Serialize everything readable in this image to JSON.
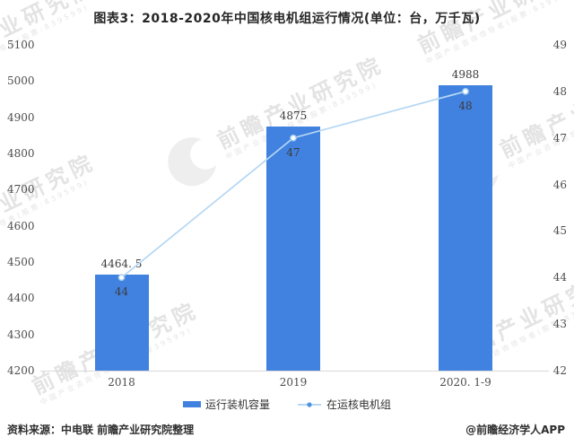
{
  "chart_data": {
    "type": "bar+line",
    "title": "图表3：2018-2020年中国核电机组运行情况(单位：台，万千瓦)",
    "categories": [
      "2018",
      "2019",
      "2020.1-9"
    ],
    "category_display": [
      "2018",
      "2019",
      "2020. 1-9"
    ],
    "series": [
      {
        "name": "运行装机容量",
        "type": "bar",
        "axis": "left",
        "values": [
          4464.5,
          4875,
          4988
        ],
        "display_labels": [
          "4464. 5",
          "4875",
          "4988"
        ]
      },
      {
        "name": "在运核电机组",
        "type": "line",
        "axis": "right",
        "values": [
          44,
          47,
          48
        ],
        "display_labels": [
          "44",
          "47",
          "48"
        ]
      }
    ],
    "left_axis": {
      "min": 4200,
      "max": 5100,
      "step": 100,
      "ticks": [
        5100,
        5000,
        4900,
        4800,
        4700,
        4600,
        4500,
        4400,
        4300,
        4200
      ]
    },
    "right_axis": {
      "min": 42,
      "max": 49,
      "step": 1,
      "ticks": [
        49,
        48,
        47,
        46,
        45,
        44,
        43,
        42
      ]
    },
    "grid": false,
    "legend_position": "bottom"
  },
  "legend": {
    "bar_label": "运行装机容量",
    "line_label": "在运核电机组"
  },
  "footer": {
    "source": "资料来源：中电联 前瞻产业研究院整理",
    "credit": "@前瞻经济学人APP"
  },
  "watermark": {
    "brand": "前瞻产业研究院",
    "subtitle": "中国产业咨询领导者(股票:839599)",
    "logo": "qianzhan-circle-logo"
  },
  "colors": {
    "bar": "#4182e0",
    "line": "#b5d7f3",
    "marker_fill": "#ffffff",
    "marker_stroke": "#9ec9ee",
    "legend_dot": "#4e92dd",
    "axis_text": "#4d4d4d",
    "label_text": "#3a3a3a",
    "baseline": "#d9d9d9",
    "title_text": "#262626",
    "footer_text": "#2e2e2e"
  }
}
